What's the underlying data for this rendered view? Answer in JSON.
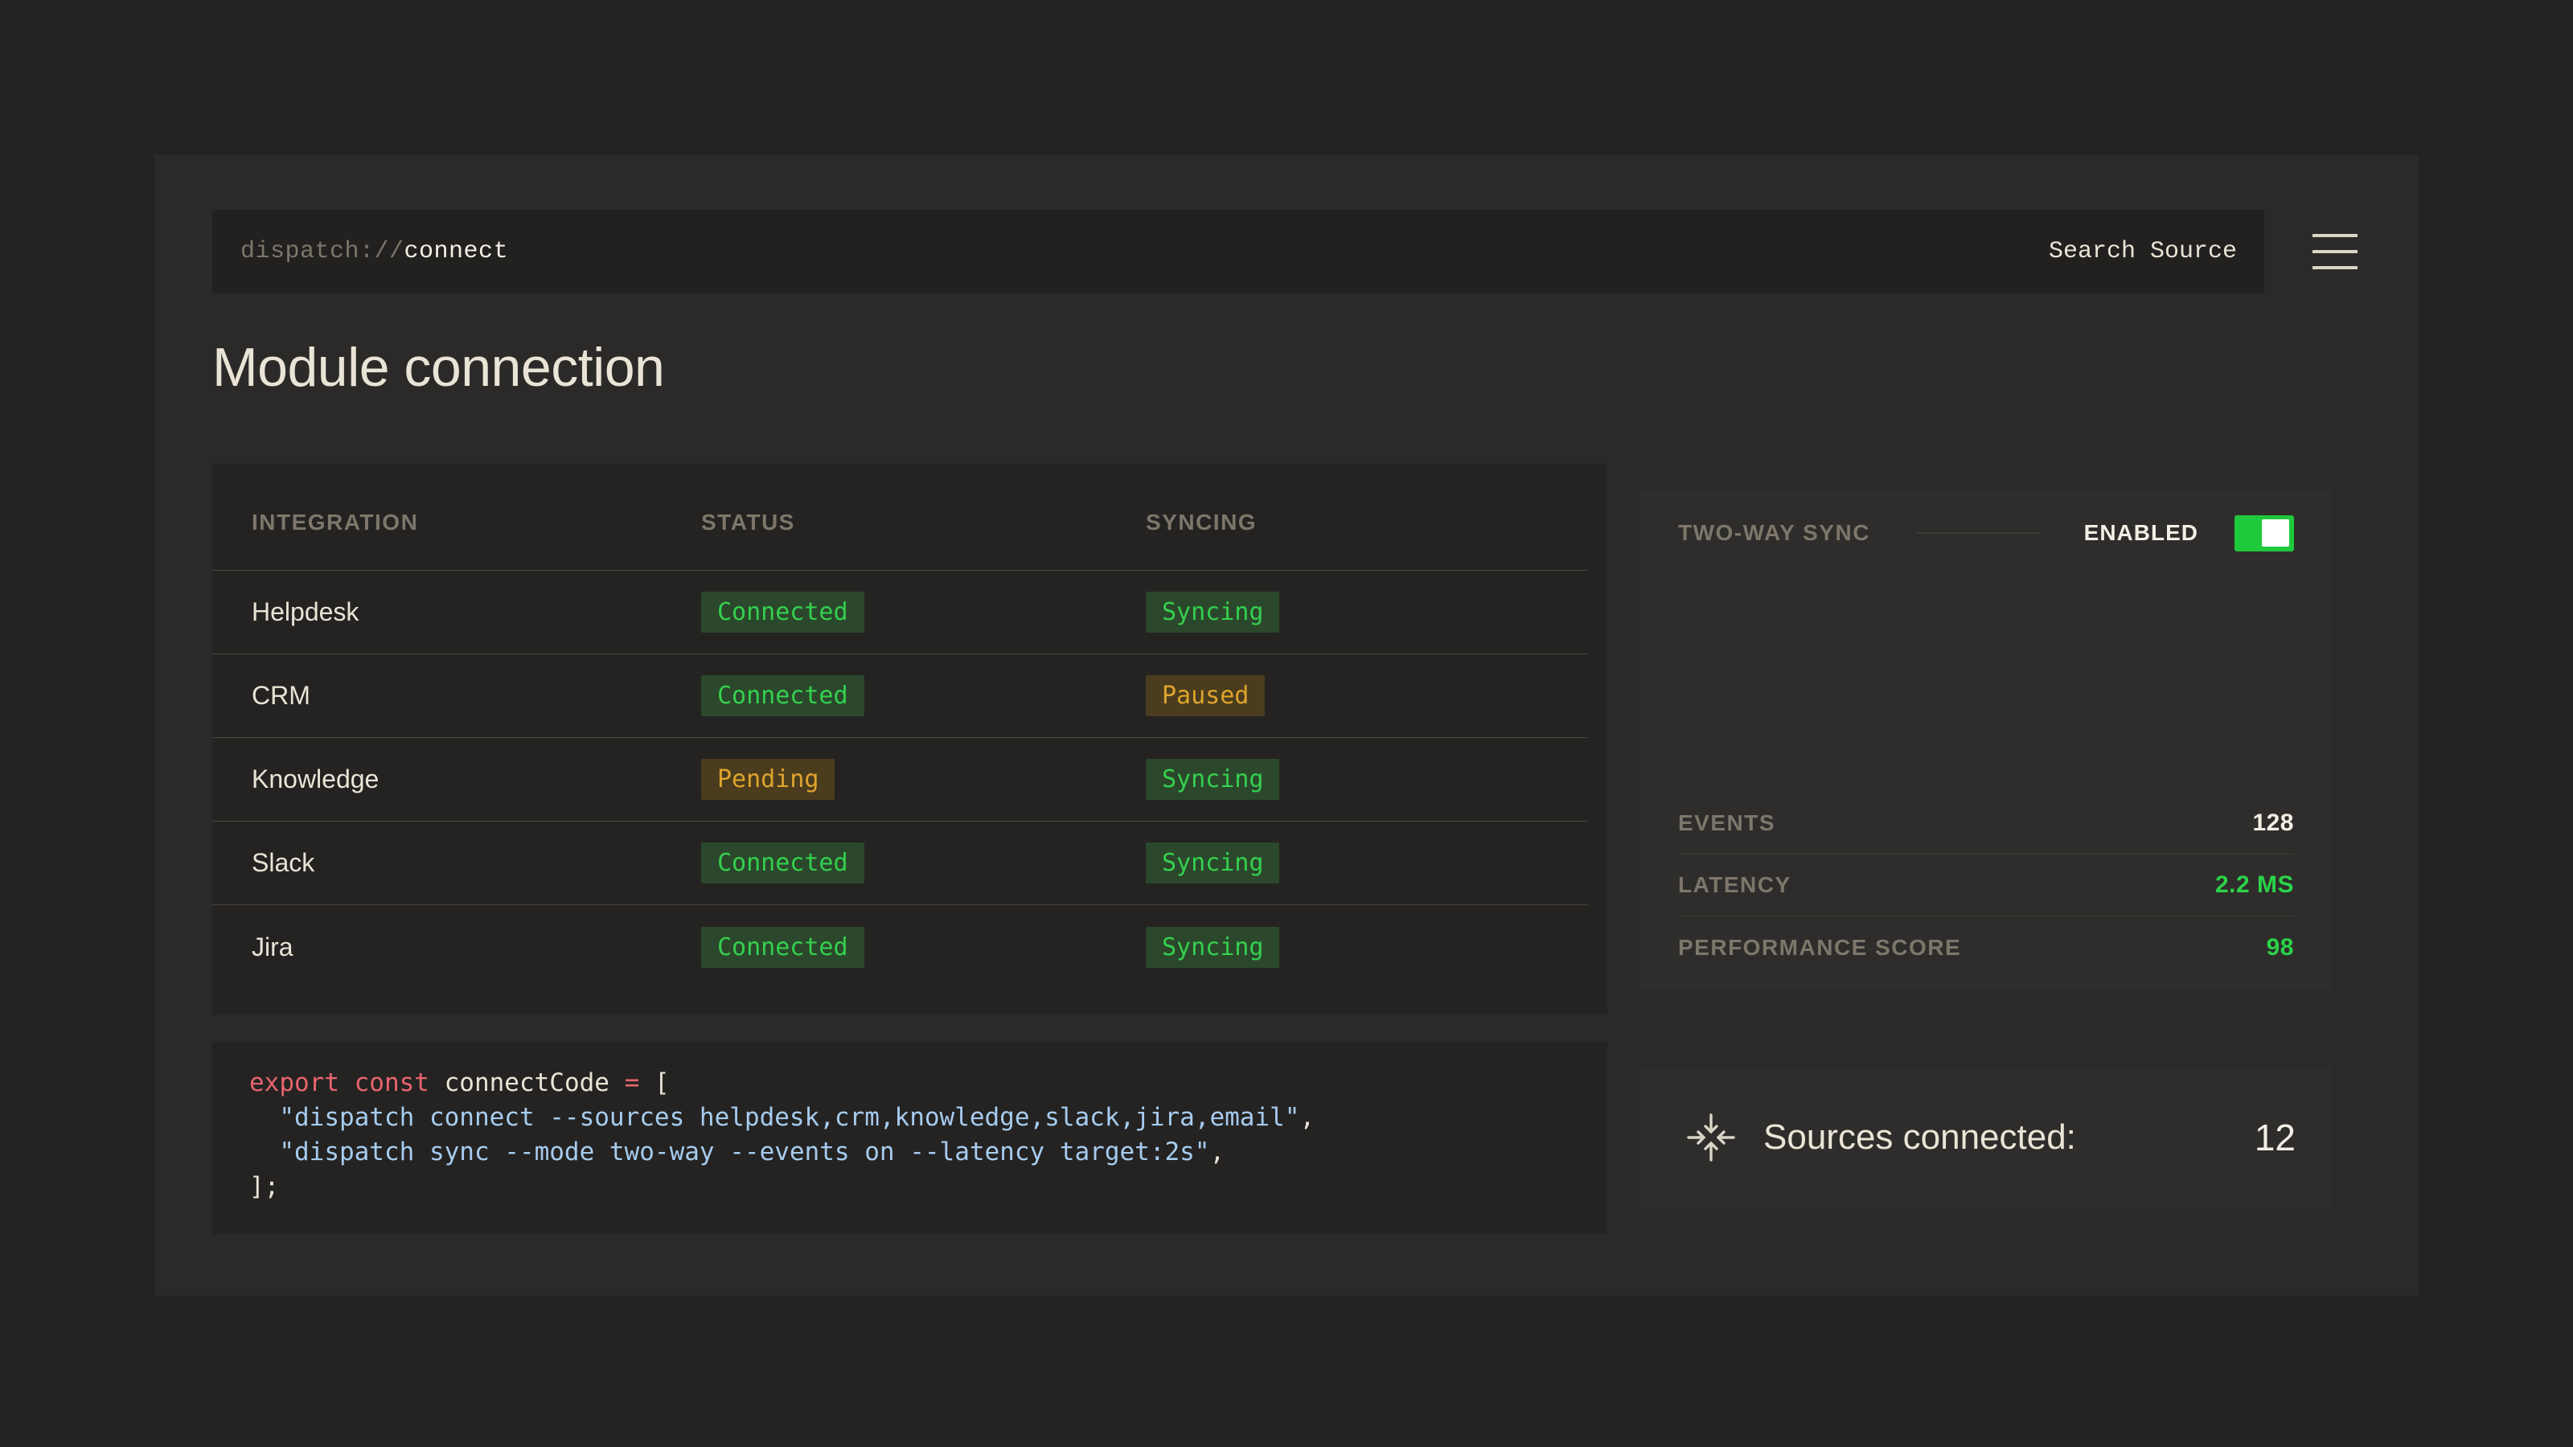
{
  "topbar": {
    "protocol": "dispatch://",
    "path": "connect",
    "search_label": "Search Source"
  },
  "page": {
    "title": "Module connection"
  },
  "table": {
    "headers": [
      "INTEGRATION",
      "STATUS",
      "SYNCING"
    ],
    "rows": [
      {
        "integration": "Helpdesk",
        "status": "Connected",
        "status_kind": "green",
        "syncing": "Syncing",
        "syncing_kind": "green"
      },
      {
        "integration": "CRM",
        "status": "Connected",
        "status_kind": "green",
        "syncing": "Paused",
        "syncing_kind": "amber"
      },
      {
        "integration": "Knowledge",
        "status": "Pending",
        "status_kind": "amber",
        "syncing": "Syncing",
        "syncing_kind": "green"
      },
      {
        "integration": "Slack",
        "status": "Connected",
        "status_kind": "green",
        "syncing": "Syncing",
        "syncing_kind": "green"
      },
      {
        "integration": "Jira",
        "status": "Connected",
        "status_kind": "green",
        "syncing": "Syncing",
        "syncing_kind": "green"
      }
    ]
  },
  "sync_panel": {
    "label": "TWO-WAY SYNC",
    "state": "ENABLED",
    "toggle_on": true,
    "stats": [
      {
        "label": "EVENTS",
        "value": "128",
        "color": "white"
      },
      {
        "label": "LATENCY",
        "value": "2.2 MS",
        "color": "green"
      },
      {
        "label": "PERFORMANCE SCORE",
        "value": "98",
        "color": "green"
      }
    ]
  },
  "code_panel": {
    "lines": [
      [
        [
          "kw",
          "export const "
        ],
        [
          "plain",
          "connectCode "
        ],
        [
          "kw",
          "= "
        ],
        [
          "plain",
          "["
        ]
      ],
      [
        [
          "plain",
          "  "
        ],
        [
          "str",
          "\"dispatch connect --sources helpdesk,crm,knowledge,slack,jira,email\""
        ],
        [
          "plain",
          ","
        ]
      ],
      [
        [
          "plain",
          "  "
        ],
        [
          "str",
          "\"dispatch sync --mode two-way --events on --latency target:2s\""
        ],
        [
          "plain",
          ","
        ]
      ],
      [
        [
          "plain",
          "];"
        ]
      ]
    ]
  },
  "sources_panel": {
    "icon": "converge-arrows-icon",
    "label": "Sources connected:",
    "value": "12"
  },
  "colors": {
    "page_bg": "#232221",
    "card_bg": "#2b2a28",
    "bar_bg": "#222120",
    "panel_dark": "#242322",
    "panel_mid": "#2e2d2b",
    "cream": "#eae4d6",
    "gray": "#7d766a",
    "green_text": "#35d04e",
    "green_badge_bg": "#2b482c",
    "amber_text": "#dfa42e",
    "amber_badge_bg": "#4a3c1d",
    "toggle_green": "#1fc93c",
    "stat_green": "#2bd248",
    "code_red": "#e8646e",
    "code_blue": "#a6cbee"
  }
}
